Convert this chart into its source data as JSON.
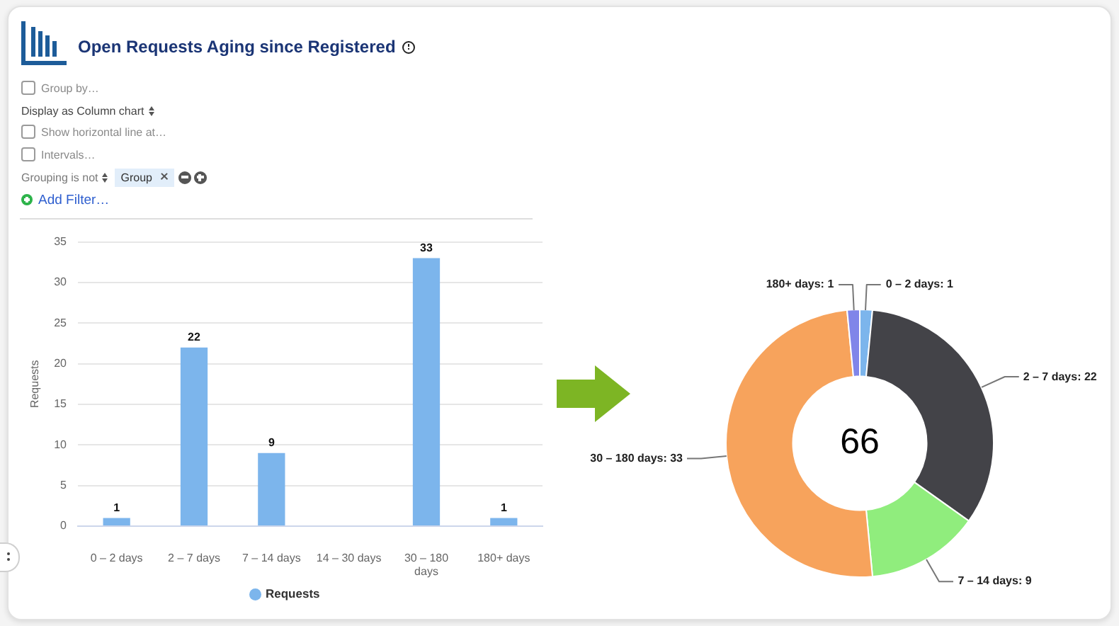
{
  "chart_data": [
    {
      "type": "bar",
      "title": "Open Requests Aging since Registered",
      "ylabel": "Requests",
      "categories": [
        "0 – 2 days",
        "2 – 7 days",
        "7 – 14 days",
        "14 – 30 days",
        "30 – 180 days",
        "180+ days"
      ],
      "series": [
        {
          "name": "Requests",
          "color": "#7cb5ec",
          "values": [
            1,
            22,
            9,
            0,
            33,
            1
          ],
          "value_labels": [
            "1",
            "22",
            "9",
            null,
            "33",
            "1"
          ]
        }
      ],
      "ylim": [
        0,
        35
      ],
      "yticks": [
        0,
        5,
        10,
        15,
        20,
        25,
        30,
        35
      ],
      "grid": "y",
      "legend": "bottom",
      "annotations": [
        "Group by…",
        "Display as Column chart",
        "Show horizontal line at…",
        "Intervals…",
        "Grouping is not",
        "Group",
        "Add Filter…"
      ]
    },
    {
      "type": "donut",
      "categories": [
        "0 – 2 days",
        "2 – 7 days",
        "7 – 14 days",
        "30 – 180 days",
        "180+ days"
      ],
      "values": [
        1,
        22,
        9,
        33,
        1
      ],
      "value_labels": [
        ": 1",
        ": 22",
        ": 9",
        ": 33",
        ": 1"
      ],
      "colors": [
        "#7cb5ec",
        "#434348",
        "#90ed7d",
        "#f7a35c",
        "#8085e9"
      ],
      "annotations": [
        "66"
      ]
    }
  ]
}
